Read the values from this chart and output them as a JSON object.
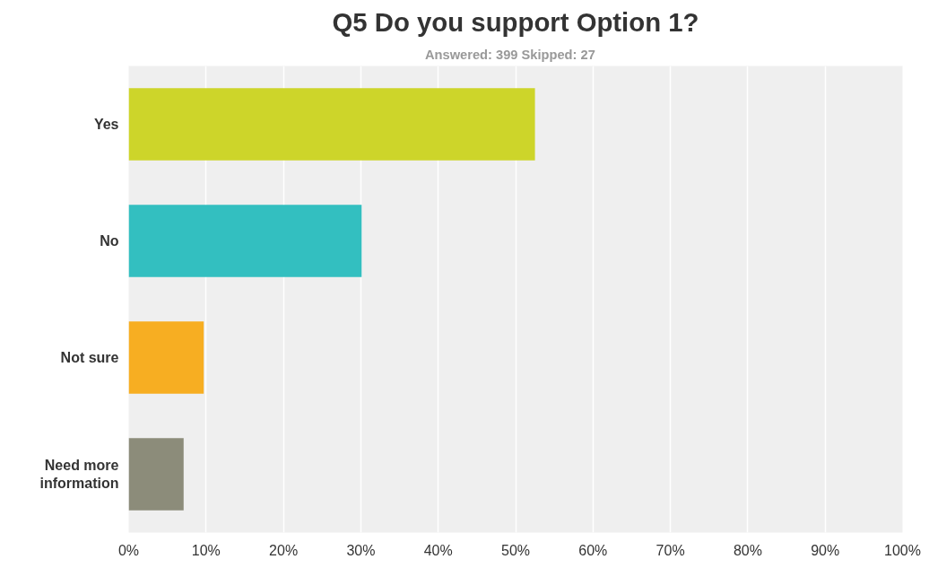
{
  "chart_data": {
    "type": "bar",
    "orientation": "horizontal",
    "title": "Q5 Do you support Option 1?",
    "subtitle": "Answered: 399    Skipped: 27",
    "categories": [
      "Yes",
      "No",
      "Not sure",
      "Need more information"
    ],
    "values": [
      52.5,
      30.1,
      9.7,
      7.1
    ],
    "colors": [
      "#cdd52a",
      "#33bfc0",
      "#f7ae22",
      "#8c8c7a"
    ],
    "xlim": [
      0,
      100
    ],
    "xticks": [
      {
        "value": 0,
        "label": "0%"
      },
      {
        "value": 10,
        "label": "10%"
      },
      {
        "value": 20,
        "label": "20%"
      },
      {
        "value": 30,
        "label": "30%"
      },
      {
        "value": 40,
        "label": "40%"
      },
      {
        "value": 50,
        "label": "50%"
      },
      {
        "value": 60,
        "label": "60%"
      },
      {
        "value": 70,
        "label": "70%"
      },
      {
        "value": 80,
        "label": "80%"
      },
      {
        "value": 90,
        "label": "90%"
      },
      {
        "value": 100,
        "label": "100%"
      }
    ],
    "grid": "x"
  }
}
